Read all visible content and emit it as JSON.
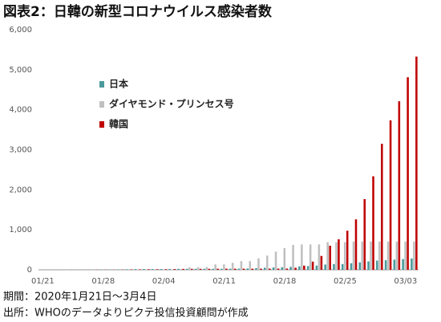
{
  "chart_data": {
    "type": "bar",
    "title": "図表2：日韓の新型コロナウイルス感染者数",
    "categories": [
      "01/21",
      null,
      null,
      null,
      null,
      null,
      null,
      "01/28",
      null,
      null,
      null,
      null,
      null,
      null,
      "02/04",
      null,
      null,
      null,
      null,
      null,
      null,
      "02/11",
      null,
      null,
      null,
      null,
      null,
      null,
      "02/18",
      null,
      null,
      null,
      null,
      null,
      null,
      "02/25",
      null,
      null,
      null,
      null,
      null,
      null,
      "03/03",
      null
    ],
    "series": [
      {
        "name": "日本",
        "color": "#4a9a9c",
        "values": [
          1,
          1,
          1,
          1,
          2,
          3,
          4,
          6,
          7,
          11,
          14,
          17,
          20,
          20,
          20,
          22,
          25,
          25,
          25,
          26,
          26,
          26,
          28,
          29,
          33,
          41,
          53,
          59,
          65,
          73,
          85,
          93,
          105,
          132,
          144,
          144,
          164,
          186,
          210,
          230,
          239,
          254,
          268,
          284
        ]
      },
      {
        "name": "ダイヤモンド・プリンセス号",
        "color": "#c0c0c0",
        "values": [
          null,
          null,
          null,
          null,
          null,
          null,
          null,
          null,
          null,
          null,
          null,
          null,
          null,
          null,
          null,
          10,
          20,
          61,
          64,
          70,
          135,
          135,
          174,
          218,
          218,
          285,
          355,
          454,
          542,
          621,
          634,
          634,
          634,
          691,
          691,
          691,
          705,
          705,
          705,
          705,
          705,
          706,
          706,
          706
        ]
      },
      {
        "name": "韓国",
        "color": "#c00000",
        "values": [
          1,
          1,
          1,
          2,
          2,
          3,
          4,
          4,
          4,
          6,
          11,
          12,
          15,
          15,
          16,
          19,
          23,
          24,
          24,
          25,
          27,
          28,
          28,
          28,
          28,
          28,
          29,
          30,
          31,
          51,
          104,
          204,
          346,
          602,
          763,
          977,
          1261,
          1766,
          2337,
          3150,
          3736,
          4212,
          4812,
          5328
        ]
      }
    ],
    "ylim": [
      0,
      6000
    ],
    "yticks": [
      0,
      {
        "value": 1000,
        "label": "1,000"
      },
      {
        "value": 2000,
        "label": "2,000"
      },
      {
        "value": 3000,
        "label": "3,000"
      },
      {
        "value": 4000,
        "label": "4,000"
      },
      {
        "value": 5000,
        "label": "5,000"
      },
      {
        "value": 6000,
        "label": "6,000"
      }
    ],
    "grid": false,
    "legend": "upper-left",
    "notes": [
      "期間：2020年1月21日～3月4日",
      "出所：WHOのデータよりピクテ投信投資顧問が作成"
    ]
  }
}
